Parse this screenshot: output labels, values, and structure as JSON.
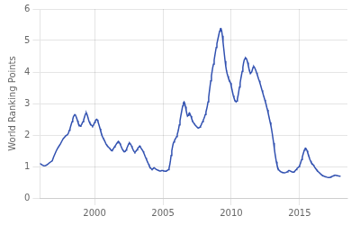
{
  "chart_data": {
    "type": "line",
    "ylabel": "World Ranking Points",
    "color": "#3050b0",
    "grid": true,
    "xlim": [
      1996.0,
      2018.5
    ],
    "xticks": [
      2000,
      2005,
      2010,
      2015
    ],
    "ylim": [
      0,
      6
    ],
    "yticks": [
      0,
      1,
      2,
      3,
      4,
      5,
      6
    ],
    "x": [
      1996.0,
      1996.1,
      1996.2,
      1996.3,
      1996.4,
      1996.5,
      1996.6,
      1996.7,
      1996.8,
      1996.9,
      1997.0,
      1997.1,
      1997.2,
      1997.3,
      1997.4,
      1997.5,
      1997.6,
      1997.7,
      1997.8,
      1997.9,
      1998.0,
      1998.05,
      1998.1,
      1998.15,
      1998.2,
      1998.25,
      1998.3,
      1998.35,
      1998.4,
      1998.45,
      1998.5,
      1998.55,
      1998.6,
      1998.65,
      1998.7,
      1998.75,
      1998.8,
      1998.85,
      1998.9,
      1998.95,
      1999.0,
      1999.05,
      1999.1,
      1999.15,
      1999.2,
      1999.25,
      1999.3,
      1999.35,
      1999.4,
      1999.45,
      1999.5,
      1999.55,
      1999.6,
      1999.65,
      1999.7,
      1999.75,
      1999.8,
      1999.85,
      1999.9,
      1999.95,
      2000.0,
      2000.05,
      2000.1,
      2000.15,
      2000.2,
      2000.25,
      2000.3,
      2000.35,
      2000.4,
      2000.45,
      2000.5,
      2000.55,
      2000.6,
      2000.65,
      2000.7,
      2000.75,
      2000.8,
      2000.85,
      2000.9,
      2000.95,
      2001.0,
      2001.05,
      2001.1,
      2001.15,
      2001.2,
      2001.25,
      2001.3,
      2001.35,
      2001.4,
      2001.45,
      2001.5,
      2001.55,
      2001.6,
      2001.65,
      2001.7,
      2001.75,
      2001.8,
      2001.85,
      2001.9,
      2001.95,
      2002.0,
      2002.05,
      2002.1,
      2002.15,
      2002.2,
      2002.25,
      2002.3,
      2002.35,
      2002.4,
      2002.45,
      2002.5,
      2002.55,
      2002.6,
      2002.65,
      2002.7,
      2002.75,
      2002.8,
      2002.85,
      2002.9,
      2002.95,
      2003.0,
      2003.05,
      2003.1,
      2003.15,
      2003.2,
      2003.25,
      2003.3,
      2003.35,
      2003.4,
      2003.45,
      2003.5,
      2003.55,
      2003.6,
      2003.65,
      2003.7,
      2003.75,
      2003.8,
      2003.85,
      2003.9,
      2003.95,
      2004.0,
      2004.05,
      2004.1,
      2004.15,
      2004.2,
      2004.25,
      2004.3,
      2004.35,
      2004.4,
      2004.45,
      2004.5,
      2004.55,
      2004.6,
      2004.65,
      2004.7,
      2004.75,
      2004.8,
      2004.85,
      2004.9,
      2004.95,
      2005.0,
      2005.05,
      2005.1,
      2005.15,
      2005.2,
      2005.25,
      2005.3,
      2005.35,
      2005.4,
      2005.45,
      2005.5,
      2005.55,
      2005.6,
      2005.65,
      2005.7,
      2005.75,
      2005.8,
      2005.85,
      2005.9,
      2005.95,
      2006.0,
      2006.05,
      2006.1,
      2006.15,
      2006.2,
      2006.25,
      2006.3,
      2006.35,
      2006.4,
      2006.45,
      2006.5,
      2006.55,
      2006.6,
      2006.65,
      2006.7,
      2006.75,
      2006.8,
      2006.85,
      2006.9,
      2006.95,
      2007.0,
      2007.05,
      2007.1,
      2007.15,
      2007.2,
      2007.25,
      2007.3,
      2007.35,
      2007.4,
      2007.45,
      2007.5,
      2007.55,
      2007.6,
      2007.65,
      2007.7,
      2007.75,
      2007.8,
      2007.85,
      2007.9,
      2007.95,
      2008.0,
      2008.05,
      2008.1,
      2008.15,
      2008.2,
      2008.25,
      2008.3,
      2008.35,
      2008.4,
      2008.45,
      2008.5,
      2008.55,
      2008.6,
      2008.65,
      2008.7,
      2008.75,
      2008.8,
      2008.85,
      2008.9,
      2008.95,
      2009.0,
      2009.05,
      2009.1,
      2009.15,
      2009.2,
      2009.25,
      2009.3,
      2009.35,
      2009.4,
      2009.45,
      2009.5,
      2009.55,
      2009.6,
      2009.65,
      2009.7,
      2009.75,
      2009.8,
      2009.85,
      2009.9,
      2009.95,
      2010.0,
      2010.05,
      2010.1,
      2010.15,
      2010.2,
      2010.25,
      2010.3,
      2010.35,
      2010.4,
      2010.45,
      2010.5,
      2010.55,
      2010.6,
      2010.65,
      2010.7,
      2010.75,
      2010.8,
      2010.85,
      2010.9,
      2010.95,
      2011.0,
      2011.05,
      2011.1,
      2011.15,
      2011.2,
      2011.25,
      2011.3,
      2011.35,
      2011.4,
      2011.45,
      2011.5,
      2011.55,
      2011.6,
      2011.65,
      2011.7,
      2011.75,
      2011.8,
      2011.85,
      2011.9,
      2011.95,
      2012.0,
      2012.05,
      2012.1,
      2012.15,
      2012.2,
      2012.25,
      2012.3,
      2012.35,
      2012.4,
      2012.45,
      2012.5,
      2012.55,
      2012.6,
      2012.65,
      2012.7,
      2012.75,
      2012.8,
      2012.85,
      2012.9,
      2012.95,
      2013.0,
      2013.05,
      2013.1,
      2013.15,
      2013.2,
      2013.25,
      2013.3,
      2013.35,
      2013.4,
      2013.45,
      2013.5,
      2013.55,
      2013.6,
      2013.65,
      2013.7,
      2013.75,
      2013.8,
      2013.85,
      2013.9,
      2013.95,
      2014.0,
      2014.05,
      2014.1,
      2014.15,
      2014.2,
      2014.25,
      2014.3,
      2014.35,
      2014.4,
      2014.45,
      2014.5,
      2014.55,
      2014.6,
      2014.65,
      2014.7,
      2014.75,
      2014.8,
      2014.85,
      2014.9,
      2014.95,
      2015.0,
      2015.05,
      2015.1,
      2015.15,
      2015.2,
      2015.25,
      2015.3,
      2015.35,
      2015.4,
      2015.45,
      2015.5,
      2015.55,
      2015.6,
      2015.65,
      2015.7,
      2015.75,
      2015.8,
      2015.85,
      2015.9,
      2015.95,
      2016.0,
      2016.05,
      2016.1,
      2016.15,
      2016.2,
      2016.25,
      2016.3,
      2016.35,
      2016.4,
      2016.45,
      2016.5,
      2016.55,
      2016.6,
      2016.65,
      2016.7,
      2016.75,
      2016.8,
      2016.85,
      2016.9,
      2016.95,
      2017.0,
      2017.05,
      2017.1,
      2017.15,
      2017.2,
      2017.25,
      2017.3,
      2017.35,
      2017.4,
      2017.45,
      2017.5,
      2017.55,
      2017.6,
      2017.65,
      2017.7,
      2017.75,
      2017.8,
      2017.85,
      2017.9,
      2017.95,
      2018.0
    ],
    "values": [
      1.1,
      1.07,
      1.04,
      1.02,
      1.03,
      1.05,
      1.08,
      1.12,
      1.15,
      1.18,
      1.3,
      1.4,
      1.5,
      1.58,
      1.65,
      1.72,
      1.8,
      1.88,
      1.93,
      1.98,
      2.0,
      2.03,
      2.08,
      2.15,
      2.2,
      2.28,
      2.35,
      2.42,
      2.5,
      2.58,
      2.62,
      2.65,
      2.63,
      2.58,
      2.52,
      2.45,
      2.38,
      2.33,
      2.3,
      2.28,
      2.3,
      2.33,
      2.38,
      2.42,
      2.48,
      2.55,
      2.62,
      2.68,
      2.7,
      2.65,
      2.58,
      2.5,
      2.43,
      2.38,
      2.35,
      2.32,
      2.3,
      2.28,
      2.3,
      2.35,
      2.4,
      2.45,
      2.48,
      2.5,
      2.48,
      2.42,
      2.35,
      2.28,
      2.2,
      2.12,
      2.05,
      1.98,
      1.92,
      1.88,
      1.85,
      1.8,
      1.75,
      1.7,
      1.67,
      1.65,
      1.62,
      1.6,
      1.58,
      1.55,
      1.52,
      1.5,
      1.52,
      1.55,
      1.58,
      1.62,
      1.65,
      1.68,
      1.72,
      1.75,
      1.78,
      1.8,
      1.77,
      1.73,
      1.68,
      1.63,
      1.58,
      1.53,
      1.5,
      1.48,
      1.47,
      1.48,
      1.52,
      1.57,
      1.62,
      1.67,
      1.72,
      1.75,
      1.73,
      1.7,
      1.65,
      1.6,
      1.55,
      1.5,
      1.47,
      1.45,
      1.47,
      1.5,
      1.53,
      1.57,
      1.6,
      1.62,
      1.65,
      1.62,
      1.58,
      1.55,
      1.52,
      1.48,
      1.43,
      1.38,
      1.32,
      1.27,
      1.22,
      1.17,
      1.12,
      1.07,
      1.02,
      0.98,
      0.95,
      0.93,
      0.91,
      0.92,
      0.94,
      0.96,
      0.95,
      0.93,
      0.91,
      0.9,
      0.89,
      0.88,
      0.87,
      0.86,
      0.86,
      0.86,
      0.87,
      0.87,
      0.87,
      0.86,
      0.86,
      0.85,
      0.85,
      0.86,
      0.87,
      0.88,
      0.9,
      0.95,
      1.05,
      1.18,
      1.35,
      1.5,
      1.62,
      1.72,
      1.78,
      1.83,
      1.87,
      1.9,
      1.95,
      2.02,
      2.1,
      2.2,
      2.32,
      2.45,
      2.58,
      2.7,
      2.82,
      2.93,
      3.02,
      3.05,
      3.0,
      2.9,
      2.78,
      2.68,
      2.6,
      2.62,
      2.68,
      2.7,
      2.65,
      2.6,
      2.53,
      2.47,
      2.42,
      2.38,
      2.35,
      2.32,
      2.3,
      2.27,
      2.25,
      2.23,
      2.22,
      2.23,
      2.25,
      2.28,
      2.32,
      2.37,
      2.42,
      2.47,
      2.52,
      2.58,
      2.65,
      2.73,
      2.82,
      2.92,
      3.05,
      3.2,
      3.38,
      3.55,
      3.72,
      3.88,
      4.02,
      4.15,
      4.25,
      4.38,
      4.52,
      4.65,
      4.78,
      4.9,
      5.0,
      5.1,
      5.2,
      5.3,
      5.37,
      5.38,
      5.3,
      5.15,
      4.95,
      4.75,
      4.55,
      4.35,
      4.18,
      4.05,
      3.95,
      3.87,
      3.8,
      3.75,
      3.7,
      3.65,
      3.55,
      3.45,
      3.35,
      3.25,
      3.18,
      3.12,
      3.08,
      3.05,
      3.08,
      3.15,
      3.25,
      3.38,
      3.52,
      3.65,
      3.78,
      3.9,
      4.02,
      4.15,
      4.28,
      4.38,
      4.42,
      4.45,
      4.43,
      4.38,
      4.3,
      4.2,
      4.1,
      4.02,
      3.95,
      3.95,
      4.0,
      4.08,
      4.15,
      4.18,
      4.15,
      4.1,
      4.05,
      3.98,
      3.92,
      3.85,
      3.78,
      3.72,
      3.65,
      3.58,
      3.5,
      3.42,
      3.35,
      3.27,
      3.2,
      3.12,
      3.05,
      2.97,
      2.88,
      2.8,
      2.7,
      2.6,
      2.5,
      2.4,
      2.3,
      2.18,
      2.05,
      1.9,
      1.75,
      1.58,
      1.42,
      1.28,
      1.15,
      1.05,
      0.97,
      0.92,
      0.88,
      0.86,
      0.84,
      0.83,
      0.82,
      0.81,
      0.81,
      0.8,
      0.8,
      0.8,
      0.81,
      0.82,
      0.83,
      0.85,
      0.87,
      0.87,
      0.86,
      0.85,
      0.84,
      0.83,
      0.82,
      0.82,
      0.83,
      0.85,
      0.88,
      0.9,
      0.93,
      0.95,
      0.97,
      0.99,
      1.03,
      1.08,
      1.15,
      1.22,
      1.3,
      1.38,
      1.45,
      1.52,
      1.57,
      1.58,
      1.55,
      1.5,
      1.43,
      1.37,
      1.3,
      1.23,
      1.18,
      1.13,
      1.1,
      1.08,
      1.05,
      1.02,
      0.98,
      0.95,
      0.92,
      0.89,
      0.87,
      0.84,
      0.82,
      0.8,
      0.78,
      0.76,
      0.74,
      0.72,
      0.71,
      0.7,
      0.69,
      0.68,
      0.67,
      0.67,
      0.66,
      0.66,
      0.65,
      0.65,
      0.65,
      0.66,
      0.67,
      0.68,
      0.69,
      0.7,
      0.71,
      0.72,
      0.72,
      0.72,
      0.72,
      0.71,
      0.71,
      0.7,
      0.7,
      0.69,
      0.69
    ]
  }
}
